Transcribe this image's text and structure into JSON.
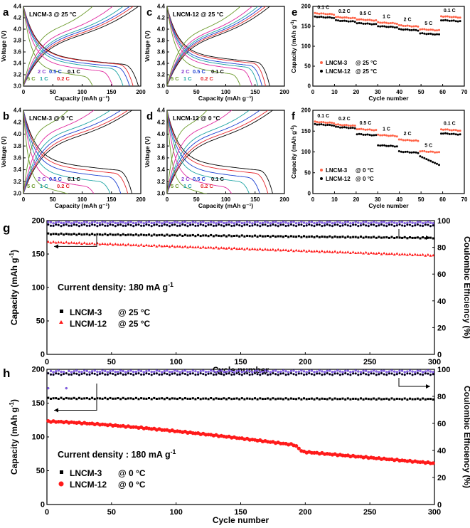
{
  "figure": {
    "panel_letters": [
      "a",
      "b",
      "c",
      "d",
      "e",
      "f",
      "g",
      "h"
    ]
  },
  "colors": {
    "c01": "#000000",
    "c02": "#e5262b",
    "c03": "#1a3fd1",
    "c04": "#1aa3a3",
    "c05": "#2db34a",
    "c06": "#6b9a2b",
    "c07": "#e0279f",
    "c08": "#8a3fd1",
    "c2": "#2d4fd8",
    "c5": "#2e8c2e",
    "c05l": "#2a7dd8",
    "c02l": "#d81e2e",
    "c01l": "#111111",
    "c2l": "#9b33cc",
    "c1l": "#2a8fbf",
    "c5l": "#5a8a1a",
    "black": "#000000",
    "red": "#ff1a1a",
    "salmon": "#ff6347",
    "violet": "#8a5cf0"
  },
  "chart_data": [
    {
      "id": "a",
      "type": "line",
      "label": "LNCM-3 @ 25 °C",
      "xlabel": "Capacity (mAh g⁻¹)",
      "ylabel": "Voltage (V)",
      "xlim": [
        0,
        200
      ],
      "ylim": [
        3.0,
        4.4
      ],
      "xticks": [
        "0",
        "50",
        "100",
        "150",
        "200"
      ],
      "yticks": [
        "3.0",
        "3.2",
        "3.4",
        "3.6",
        "3.8",
        "4.0",
        "4.2",
        "4.4"
      ],
      "rates": [
        {
          "name": "0.1 C",
          "cap": 196,
          "ch": 3.8,
          "dis": 3.54,
          "color": "c01"
        },
        {
          "name": "0.2 C",
          "cap": 187,
          "ch": 3.82,
          "dis": 3.54,
          "color": "c02"
        },
        {
          "name": "0.5 C",
          "cap": 181,
          "ch": 3.85,
          "dis": 3.5,
          "color": "c03"
        },
        {
          "name": "1 C",
          "cap": 170,
          "ch": 3.87,
          "dis": 3.47,
          "color": "c04"
        },
        {
          "name": "2 C",
          "cap": 152,
          "ch": 3.9,
          "dis": 3.42,
          "color": "c07"
        },
        {
          "name": "5 C",
          "cap": 118,
          "ch": 3.96,
          "dis": 3.33,
          "color": "c06"
        }
      ],
      "rate_labels": [
        {
          "text": "2 C",
          "color": "c08"
        },
        {
          "text": "0.5 C",
          "color": "c03"
        },
        {
          "text": "0.1 C",
          "color": "c01"
        },
        {
          "text": "5 C",
          "color": "c06"
        },
        {
          "text": "1 C",
          "color": "c04"
        },
        {
          "text": "0.2 C",
          "color": "c02"
        }
      ]
    },
    {
      "id": "b",
      "type": "line",
      "label": "LNCM-3 @ 0 °C",
      "xlabel": "Capacity (mAh g⁻¹)",
      "ylabel": "Voltage (V)",
      "xlim": [
        0,
        200
      ],
      "ylim": [
        3.0,
        4.4
      ],
      "xticks": [
        "0",
        "50",
        "100",
        "150",
        "200"
      ],
      "yticks": [
        "3.0",
        "3.2",
        "3.4",
        "3.6",
        "3.8",
        "4.0",
        "4.2",
        "4.4"
      ],
      "rates": [
        {
          "name": "0.1 C",
          "cap": 185,
          "ch": 3.88,
          "dis": 3.55,
          "color": "c01"
        },
        {
          "name": "0.2 C",
          "cap": 178,
          "ch": 3.92,
          "dis": 3.5,
          "color": "c02"
        },
        {
          "name": "0.5 C",
          "cap": 166,
          "ch": 3.96,
          "dis": 3.44,
          "color": "c03"
        },
        {
          "name": "1 C",
          "cap": 148,
          "ch": 4.0,
          "dis": 3.36,
          "color": "c04"
        },
        {
          "name": "2 C",
          "cap": 120,
          "ch": 4.04,
          "dis": 3.28,
          "color": "c07"
        },
        {
          "name": "5 C",
          "cap": 76,
          "ch": 4.1,
          "dis": 3.18,
          "color": "c06"
        }
      ],
      "rate_labels": [
        {
          "text": "2 C",
          "color": "c08"
        },
        {
          "text": "0.5 C",
          "color": "c03"
        },
        {
          "text": "0.1 C",
          "color": "c01"
        },
        {
          "text": "5 C",
          "color": "c06"
        },
        {
          "text": "1 C",
          "color": "c04"
        },
        {
          "text": "0.2 C",
          "color": "c02"
        }
      ]
    },
    {
      "id": "c",
      "type": "line",
      "label": "LNCM-12 @ 25 °C",
      "xlabel": "Capacity (mAh g⁻¹)",
      "ylabel": "Voltage (V)",
      "xlim": [
        0,
        200
      ],
      "ylim": [
        3.0,
        4.4
      ],
      "xticks": [
        "0",
        "50",
        "100",
        "150",
        "200"
      ],
      "yticks": [
        "3.0",
        "3.2",
        "3.4",
        "3.6",
        "3.8",
        "4.0",
        "4.2",
        "4.4"
      ],
      "rates": [
        {
          "name": "0.1 C",
          "cap": 175,
          "ch": 3.8,
          "dis": 3.58,
          "color": "c01"
        },
        {
          "name": "0.2 C",
          "cap": 168,
          "ch": 3.82,
          "dis": 3.56,
          "color": "c02"
        },
        {
          "name": "0.5 C",
          "cap": 162,
          "ch": 3.84,
          "dis": 3.52,
          "color": "c03"
        },
        {
          "name": "1 C",
          "cap": 155,
          "ch": 3.86,
          "dis": 3.49,
          "color": "c04"
        },
        {
          "name": "2 C",
          "cap": 145,
          "ch": 3.88,
          "dis": 3.45,
          "color": "c07"
        },
        {
          "name": "5 C",
          "cap": 125,
          "ch": 3.93,
          "dis": 3.37,
          "color": "c06"
        }
      ],
      "rate_labels": [
        {
          "text": "2 C",
          "color": "c08"
        },
        {
          "text": "0.5 C",
          "color": "c03"
        },
        {
          "text": "0.1 C",
          "color": "c01"
        },
        {
          "text": "5 C",
          "color": "c06"
        },
        {
          "text": "1 C",
          "color": "c04"
        },
        {
          "text": "0.2 C",
          "color": "c02"
        }
      ]
    },
    {
      "id": "d",
      "type": "line",
      "label": "LNCM-12 @ 0 °C",
      "xlabel": "Capacity (mAh g⁻¹)",
      "ylabel": "Voltage (V)",
      "xlim": [
        0,
        200
      ],
      "ylim": [
        3.0,
        4.4
      ],
      "xticks": [
        "0",
        "50",
        "100",
        "150",
        "200"
      ],
      "yticks": [
        "3.0",
        "3.2",
        "3.4",
        "3.6",
        "3.8",
        "4.0",
        "4.2",
        "4.4"
      ],
      "rates": [
        {
          "name": "0.1 C",
          "cap": 180,
          "ch": 3.86,
          "dis": 3.55,
          "color": "c01"
        },
        {
          "name": "0.2 C",
          "cap": 172,
          "ch": 3.9,
          "dis": 3.5,
          "color": "c02"
        },
        {
          "name": "0.5 C",
          "cap": 158,
          "ch": 3.94,
          "dis": 3.43,
          "color": "c03"
        },
        {
          "name": "1 C",
          "cap": 140,
          "ch": 3.98,
          "dis": 3.36,
          "color": "c04"
        },
        {
          "name": "2 C",
          "cap": 110,
          "ch": 4.03,
          "dis": 3.27,
          "color": "c07"
        },
        {
          "name": "5 C",
          "cap": 68,
          "ch": 4.1,
          "dis": 3.17,
          "color": "c06"
        }
      ],
      "rate_labels": [
        {
          "text": "2 C",
          "color": "c08"
        },
        {
          "text": "0.5 C",
          "color": "c03"
        },
        {
          "text": "0.1 C",
          "color": "c01"
        },
        {
          "text": "5 C",
          "color": "c06"
        },
        {
          "text": "1 C",
          "color": "c04"
        },
        {
          "text": "0.2 C",
          "color": "c02"
        }
      ]
    },
    {
      "id": "e",
      "type": "scatter",
      "xlabel": "Cycle number",
      "ylabel": "Capacity (mAh g⁻¹)",
      "xlim": [
        0,
        72
      ],
      "ylim": [
        0,
        210
      ],
      "xticks": [
        "0",
        "10",
        "20",
        "30",
        "40",
        "50",
        "60",
        "70"
      ],
      "yticks": [
        "0",
        "50",
        "100",
        "150",
        "200"
      ],
      "segments": [
        "0.1 C",
        "0.2 C",
        "0.5 C",
        "1 C",
        "2 C",
        "5 C",
        "0.1 C"
      ],
      "series": [
        {
          "name": "LNCM-3",
          "suffix": "@ 25 °C",
          "color": "salmon",
          "levels": [
            192,
            182,
            176,
            168,
            160,
            150,
            184
          ]
        },
        {
          "name": "LNCM-12",
          "suffix": "@ 25 °C",
          "color": "black",
          "levels": [
            183,
            173,
            166,
            158,
            150,
            139,
            174
          ]
        }
      ]
    },
    {
      "id": "f",
      "type": "scatter",
      "xlabel": "Cycle number",
      "ylabel": "Capacity (mAh g⁻¹)",
      "xlim": [
        0,
        72
      ],
      "ylim": [
        0,
        210
      ],
      "xticks": [
        "0",
        "10",
        "20",
        "30",
        "40",
        "50",
        "60",
        "70"
      ],
      "yticks": [
        "0",
        "50",
        "100",
        "150",
        "200"
      ],
      "segments": [
        "0.1 C",
        "0.2 C",
        "0.5 C",
        "1 C",
        "2 C",
        "5 C",
        "0.1 C"
      ],
      "series": [
        {
          "name": "LNCM-3",
          "suffix": "@ 0 °C",
          "color": "salmon",
          "levels": [
            181,
            174,
            163,
            148,
            136,
            107,
            162
          ]
        },
        {
          "name": "LNCM-12",
          "suffix": "@ 0 °C",
          "color": "black",
          "levels": [
            175,
            168,
            150,
            122,
            106,
            84,
            152
          ]
        }
      ]
    },
    {
      "id": "g",
      "type": "scatter",
      "annotation": "Current density: 180 mA g⁻¹",
      "xlabel": "Cycle number",
      "ylabel": "Capacity (mAh g⁻¹)",
      "ylabel2": "Coulombic Efficiency (%)",
      "xlim": [
        0,
        300
      ],
      "ylim": [
        0,
        200
      ],
      "y2lim": [
        0,
        100
      ],
      "xticks": [
        "0",
        "50",
        "100",
        "150",
        "200",
        "250",
        "300"
      ],
      "yticks": [
        "0",
        "50",
        "100",
        "150",
        "200"
      ],
      "y2ticks": [
        "0",
        "20",
        "40",
        "60",
        "80",
        "100"
      ],
      "series": [
        {
          "name": "LNCM-3",
          "suffix": "@ 25 °C",
          "color": "black",
          "marker": "square",
          "start": 180,
          "end": 174
        },
        {
          "name": "LNCM-12",
          "suffix": "@ 25 °C",
          "color": "red",
          "marker": "triangle",
          "start": 168,
          "end": 148
        }
      ],
      "efficiency": [
        {
          "name": "LNCM-3 CE",
          "color": "violet",
          "level": 98.5
        },
        {
          "name": "LNCM-12 CE",
          "color": "black",
          "level": 96.5
        }
      ]
    },
    {
      "id": "h",
      "type": "scatter",
      "annotation": "Current density : 180 mA g⁻¹",
      "xlabel": "Cycle number",
      "ylabel": "Capacity (mAh g⁻¹)",
      "ylabel2": "Coulombic Efficiency (%)",
      "xlim": [
        0,
        300
      ],
      "ylim": [
        0,
        200
      ],
      "y2lim": [
        0,
        100
      ],
      "xticks": [
        "0",
        "50",
        "100",
        "150",
        "200",
        "250",
        "300"
      ],
      "yticks": [
        "0",
        "50",
        "100",
        "150",
        "200"
      ],
      "y2ticks": [
        "0",
        "20",
        "40",
        "60",
        "80",
        "100"
      ],
      "series": [
        {
          "name": "LNCM-3",
          "suffix": "@ 0 °C",
          "color": "black",
          "marker": "square",
          "start": 157,
          "end": 156
        },
        {
          "name": "LNCM-12",
          "suffix": "@ 0 °C",
          "color": "red",
          "marker": "circle",
          "start": 123,
          "end": 61
        }
      ],
      "efficiency": [
        {
          "name": "LNCM-3 CE",
          "color": "violet",
          "level": 98.5
        },
        {
          "name": "LNCM-12 CE",
          "color": "black",
          "level": 96.5
        }
      ]
    }
  ]
}
